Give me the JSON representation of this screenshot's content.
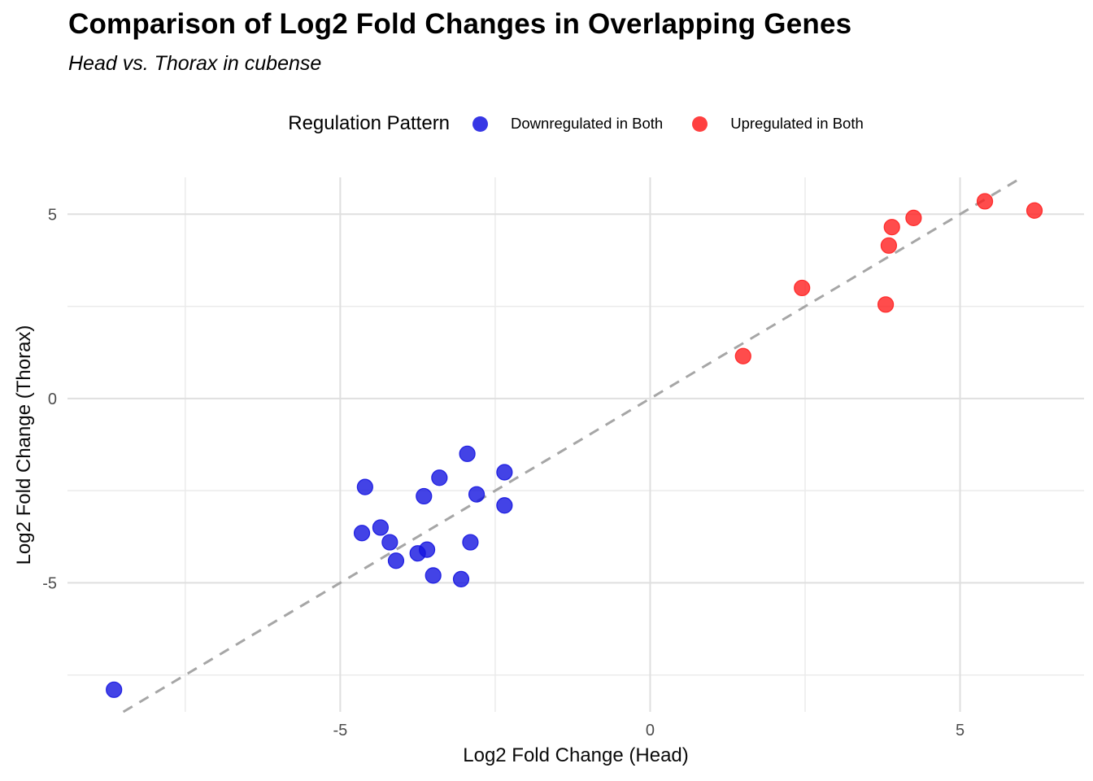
{
  "header": {
    "title": "Comparison of Log2 Fold Changes in Overlapping Genes",
    "subtitle": "Head vs. Thorax in cubense"
  },
  "legend": {
    "title": "Regulation Pattern",
    "items": [
      {
        "label": "Downregulated in Both",
        "color": "#1414E0"
      },
      {
        "label": "Upregulated in Both",
        "color": "#FF1F1F"
      }
    ]
  },
  "chart_data": {
    "type": "scatter",
    "title": "Comparison of Log2 Fold Changes in Overlapping Genes",
    "subtitle": "Head vs. Thorax in cubense",
    "xlabel": "Log2 Fold Change (Head)",
    "ylabel": "Log2 Fold Change (Thorax)",
    "xlim": [
      -9.4,
      7.0
    ],
    "ylim": [
      -8.5,
      6.0
    ],
    "x_ticks": [
      -5,
      0,
      5
    ],
    "y_ticks": [
      -5,
      0,
      5
    ],
    "x_minor_ticks": [
      -7.5,
      -2.5,
      2.5
    ],
    "y_minor_ticks": [
      -7.5,
      -2.5,
      2.5
    ],
    "grid": true,
    "legend_position": "top",
    "grid_major_color": "#DFDFDF",
    "grid_minor_color": "#EBEBEB",
    "tick_label_color": "#4d4d4d",
    "reference_line": {
      "type": "identity y = x",
      "style": "dashed",
      "color": "#A6A6A6"
    },
    "point_opacity": 0.8,
    "series": [
      {
        "name": "Downregulated in Both",
        "color": "#1414E0",
        "points": [
          [
            -8.65,
            -7.9
          ],
          [
            -4.65,
            -3.65
          ],
          [
            -4.6,
            -2.4
          ],
          [
            -4.35,
            -3.5
          ],
          [
            -4.2,
            -3.9
          ],
          [
            -4.1,
            -4.4
          ],
          [
            -3.75,
            -4.2
          ],
          [
            -3.65,
            -2.65
          ],
          [
            -3.6,
            -4.1
          ],
          [
            -3.5,
            -4.8
          ],
          [
            -3.4,
            -2.15
          ],
          [
            -3.05,
            -4.9
          ],
          [
            -2.95,
            -1.5
          ],
          [
            -2.9,
            -3.9
          ],
          [
            -2.8,
            -2.6
          ],
          [
            -2.35,
            -2.0
          ],
          [
            -2.35,
            -2.9
          ]
        ]
      },
      {
        "name": "Upregulated in Both",
        "color": "#FF1F1F",
        "points": [
          [
            1.5,
            1.15
          ],
          [
            2.45,
            3.0
          ],
          [
            3.8,
            2.55
          ],
          [
            3.85,
            4.15
          ],
          [
            3.9,
            4.65
          ],
          [
            4.25,
            4.9
          ],
          [
            5.4,
            5.35
          ],
          [
            6.2,
            5.1
          ]
        ]
      }
    ]
  }
}
